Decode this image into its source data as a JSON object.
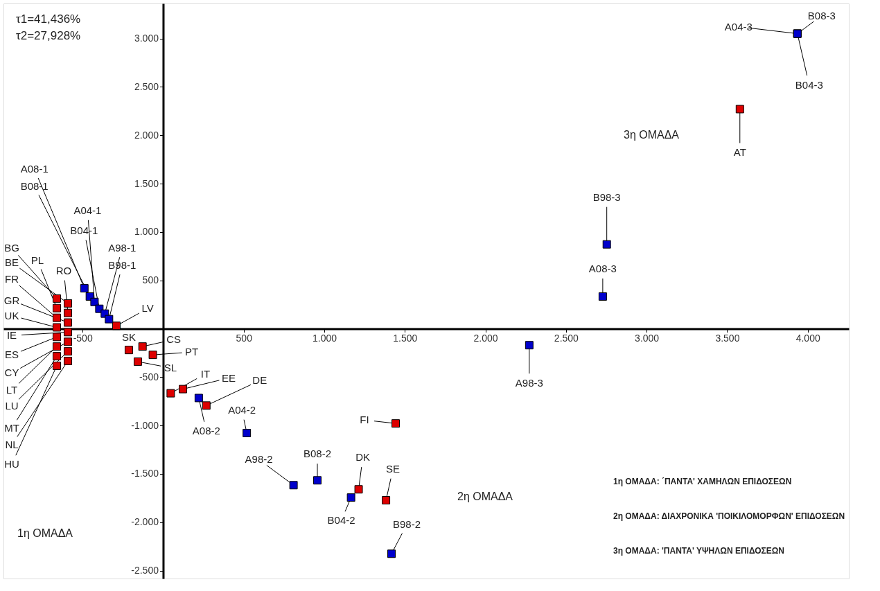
{
  "chart_data": {
    "type": "scatter",
    "xlim": [
      -991,
      4255
    ],
    "ylim": [
      -2582,
      3362
    ],
    "xticks": [
      {
        "value": -500,
        "label": "-500"
      },
      {
        "value": 500,
        "label": "500"
      },
      {
        "value": 1000,
        "label": "1.000"
      },
      {
        "value": 1500,
        "label": "1.500"
      },
      {
        "value": 2000,
        "label": "2.000"
      },
      {
        "value": 2500,
        "label": "2.500"
      },
      {
        "value": 3000,
        "label": "3.000"
      },
      {
        "value": 3500,
        "label": "3.500"
      },
      {
        "value": 4000,
        "label": "4.000"
      }
    ],
    "yticks": [
      {
        "value": -2500,
        "label": "-2.500"
      },
      {
        "value": -2000,
        "label": "-2.000"
      },
      {
        "value": -1500,
        "label": "-1.500"
      },
      {
        "value": -1000,
        "label": "-1.000"
      },
      {
        "value": -500,
        "label": "-500"
      },
      {
        "value": 500,
        "label": "500"
      },
      {
        "value": 1000,
        "label": "1.000"
      },
      {
        "value": 1500,
        "label": "1.500"
      },
      {
        "value": 2000,
        "label": "2.000"
      },
      {
        "value": 2500,
        "label": "2.500"
      },
      {
        "value": 3000,
        "label": "3.000"
      }
    ],
    "marker": "square",
    "series": [
      {
        "color": "#dd0000",
        "x": [
          3579,
          1443,
          1383,
          1213,
          268,
          123,
          47,
          -157,
          -64,
          -128,
          -213,
          -290,
          -660,
          -591,
          -660,
          -591,
          -660,
          -591,
          -660,
          -591,
          -660,
          -591,
          -660,
          -591,
          -660,
          -591,
          -660
        ],
        "values": [
          2270,
          -979,
          -1773,
          -1660,
          -794,
          -624,
          -667,
          -340,
          -270,
          -184,
          -220,
          30,
          312,
          262,
          213,
          163,
          113,
          64,
          14,
          -35,
          -85,
          -135,
          -184,
          -234,
          -284,
          -333,
          -383
        ],
        "value_labels": [
          "AT",
          "FI",
          "SE",
          "DK",
          "DE",
          "EE",
          "IT",
          "SL",
          "PT",
          "CS",
          "SK",
          "LV",
          "BG",
          "BE",
          "PL",
          "RO",
          "FR",
          "GR",
          "UK",
          "IE",
          "ES",
          "CY",
          "LT",
          "LU",
          "MT",
          "NL",
          "HU"
        ]
      },
      {
        "color": "#0000cc",
        "x": [
          3936,
          3936,
          3936,
          2753,
          2728,
          2272,
          1417,
          1166,
          957,
          809,
          519,
          221,
          -489,
          -455,
          -426,
          -396,
          -362,
          -336
        ],
        "values": [
          3050,
          3050,
          3050,
          872,
          333,
          -170,
          -2326,
          -1745,
          -1567,
          -1617,
          -1078,
          -716,
          418,
          333,
          277,
          206,
          156,
          99
        ],
        "value_labels": [
          "A04-3",
          "B08-3",
          "B04-3",
          "B98-3",
          "A08-3",
          "A98-3",
          "B98-2",
          "B04-2",
          "B08-2",
          "A98-2",
          "A04-2",
          "A08-2",
          "A08-1",
          "B08-1",
          "A04-1",
          "B04-1",
          "A98-1",
          "B98-1"
        ]
      }
    ],
    "annotations": [
      "τ1=41,436%",
      "τ2=27,928%",
      "1η ΟΜΑΔΑ: ΄ΠΑΝΤΑ' ΧΑΜΗΛΩΝ ΕΠΙΔΟΣΕΩΝ",
      "2η ΟΜΑΔΑ: ΔΙΑΧΡΟΝΙΚΑ 'ΠΟΙΚΙΛΟΜΟΡΦΩΝ' ΕΠΙΔΟΣΕΩΝ",
      "3η ΟΜΑΔΑ: 'ΠΑΝΤΑ' ΥΨΗΛΩΝ ΕΠΙΔΟΣΕΩΝ",
      "1η ΟΜΑΔΑ",
      "2η ΟΜΑΔΑ",
      "3η ΟΜΑΔΑ"
    ]
  }
}
